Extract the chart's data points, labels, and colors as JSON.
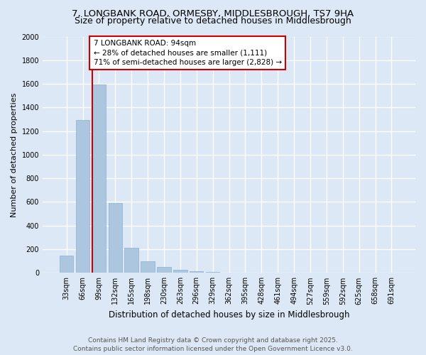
{
  "title_line1": "7, LONGBANK ROAD, ORMESBY, MIDDLESBROUGH, TS7 9HA",
  "title_line2": "Size of property relative to detached houses in Middlesbrough",
  "xlabel": "Distribution of detached houses by size in Middlesbrough",
  "ylabel": "Number of detached properties",
  "categories": [
    "33sqm",
    "66sqm",
    "99sqm",
    "132sqm",
    "165sqm",
    "198sqm",
    "230sqm",
    "263sqm",
    "296sqm",
    "329sqm",
    "362sqm",
    "395sqm",
    "428sqm",
    "461sqm",
    "494sqm",
    "527sqm",
    "559sqm",
    "592sqm",
    "625sqm",
    "658sqm",
    "691sqm"
  ],
  "values": [
    145,
    1295,
    1595,
    590,
    215,
    100,
    52,
    28,
    15,
    8,
    3,
    0,
    0,
    0,
    0,
    0,
    0,
    0,
    0,
    0,
    0
  ],
  "bar_color": "#adc6e0",
  "bar_edge_color": "#8ab0d0",
  "vline_color": "#cc0000",
  "vline_x_index": 2,
  "annotation_text_line1": "7 LONGBANK ROAD: 94sqm",
  "annotation_text_line2": "← 28% of detached houses are smaller (1,111)",
  "annotation_text_line3": "71% of semi-detached houses are larger (2,828) →",
  "annotation_box_color": "#ffffff",
  "annotation_box_edge": "#cc0000",
  "ylim": [
    0,
    2000
  ],
  "yticks": [
    0,
    200,
    400,
    600,
    800,
    1000,
    1200,
    1400,
    1600,
    1800,
    2000
  ],
  "background_color": "#dce8f5",
  "plot_bg_color": "#dce8f5",
  "grid_color": "#ffffff",
  "footer_line1": "Contains HM Land Registry data © Crown copyright and database right 2025.",
  "footer_line2": "Contains public sector information licensed under the Open Government Licence v3.0.",
  "title_fontsize": 9.5,
  "subtitle_fontsize": 9,
  "xlabel_fontsize": 8.5,
  "ylabel_fontsize": 8,
  "tick_fontsize": 7,
  "annotation_fontsize": 7.5,
  "footer_fontsize": 6.5
}
